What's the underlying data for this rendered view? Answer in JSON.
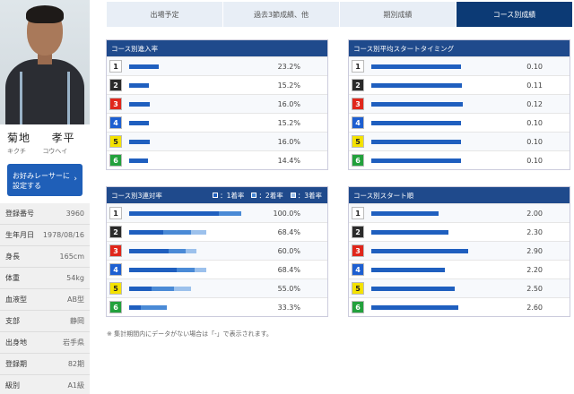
{
  "profile": {
    "name_family": "菊地",
    "name_given": "孝平",
    "kana_family": "キクチ",
    "kana_given": "コウヘイ",
    "fav_button": "お好みレーサーに設定する",
    "fav_button_line1": "お好みレーサーに",
    "fav_button_line2": "設定する",
    "info": [
      {
        "label": "登録番号",
        "value": "3960"
      },
      {
        "label": "生年月日",
        "value": "1978/08/16"
      },
      {
        "label": "身長",
        "value": "165cm"
      },
      {
        "label": "体重",
        "value": "54kg"
      },
      {
        "label": "血液型",
        "value": "AB型"
      },
      {
        "label": "支部",
        "value": "静岡"
      },
      {
        "label": "出身地",
        "value": "岩手県"
      },
      {
        "label": "登録期",
        "value": "82期"
      },
      {
        "label": "級別",
        "value": "A1級"
      }
    ]
  },
  "tabs": [
    "出場予定",
    "過去3節成績、他",
    "期別成績",
    "コース別成績"
  ],
  "active_tab": 3,
  "lane_colors": [
    "#ffffff",
    "#2b2b2b",
    "#e0261b",
    "#1d5fd1",
    "#f4e200",
    "#23a13c"
  ],
  "lane_text_colors": [
    "#222222",
    "#ffffff",
    "#ffffff",
    "#ffffff",
    "#222222",
    "#ffffff"
  ],
  "bar_colors": {
    "primary": "#1f5fbf",
    "second": "#4a8ad6",
    "third": "#9cc1ec"
  },
  "panels": {
    "entry": {
      "title": "コース別進入率",
      "rows": [
        {
          "lane": "1",
          "value": 23.2,
          "label": "23.2%"
        },
        {
          "lane": "2",
          "value": 15.2,
          "label": "15.2%"
        },
        {
          "lane": "3",
          "value": 16.0,
          "label": "16.0%"
        },
        {
          "lane": "4",
          "value": 15.2,
          "label": "15.2%"
        },
        {
          "lane": "5",
          "value": 16.0,
          "label": "16.0%"
        },
        {
          "lane": "6",
          "value": 14.4,
          "label": "14.4%"
        }
      ]
    },
    "start_timing": {
      "title": "コース別平均スタートタイミング",
      "rows": [
        {
          "lane": "1",
          "value": 0.1,
          "label": "0.10"
        },
        {
          "lane": "2",
          "value": 0.11,
          "label": "0.11"
        },
        {
          "lane": "3",
          "value": 0.12,
          "label": "0.12"
        },
        {
          "lane": "4",
          "value": 0.1,
          "label": "0.10"
        },
        {
          "lane": "5",
          "value": 0.1,
          "label": "0.10"
        },
        {
          "lane": "6",
          "value": 0.1,
          "label": "0.10"
        }
      ]
    },
    "top3": {
      "title": "コース別3連対率",
      "legend": [
        "：1着率",
        "：2着率",
        "：3着率"
      ],
      "rows": [
        {
          "lane": "1",
          "first": 80,
          "second": 20,
          "third": 0,
          "label": "100.0%"
        },
        {
          "lane": "2",
          "first": 30,
          "second": 25,
          "third": 13.4,
          "label": "68.4%"
        },
        {
          "lane": "3",
          "first": 35,
          "second": 15,
          "third": 10,
          "label": "60.0%"
        },
        {
          "lane": "4",
          "first": 42,
          "second": 16,
          "third": 10.4,
          "label": "68.4%"
        },
        {
          "lane": "5",
          "first": 20,
          "second": 20,
          "third": 15,
          "label": "55.0%"
        },
        {
          "lane": "6",
          "first": 10,
          "second": 23.3,
          "third": 0,
          "label": "33.3%"
        }
      ]
    },
    "start_position": {
      "title": "コース別スタート順",
      "rows": [
        {
          "lane": "1",
          "value": 2.0,
          "label": "2.00"
        },
        {
          "lane": "2",
          "value": 2.3,
          "label": "2.30"
        },
        {
          "lane": "3",
          "value": 2.9,
          "label": "2.90"
        },
        {
          "lane": "4",
          "value": 2.2,
          "label": "2.20"
        },
        {
          "lane": "5",
          "value": 2.5,
          "label": "2.50"
        },
        {
          "lane": "6",
          "value": 2.6,
          "label": "2.60"
        }
      ]
    }
  },
  "note": "※ 集計期間内にデータがない場合は「-」で表示されます。"
}
